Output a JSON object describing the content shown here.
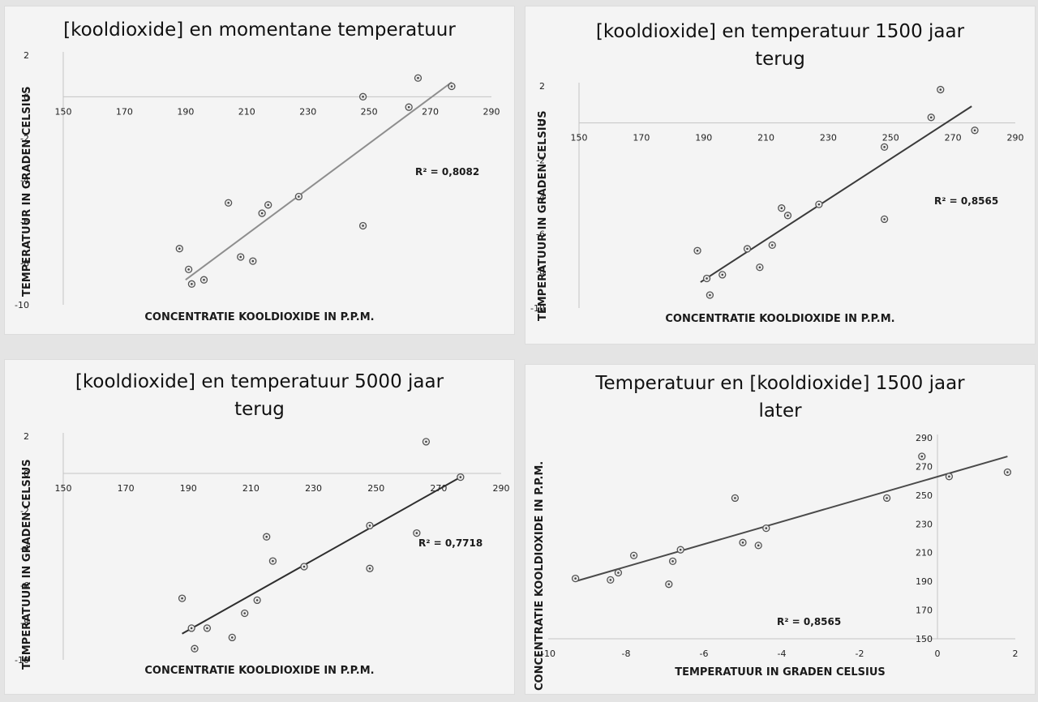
{
  "chart_data": [
    {
      "type": "scatter",
      "title": "[kooldioxide] en momentane temperatuur",
      "xlabel": "CONCENTRATIE KOOLDIOXIDE IN P.P.M.",
      "ylabel": "TEMPERATUUR IN GRADEN CELSIUS",
      "xlim": [
        150,
        290
      ],
      "ylim": [
        -10,
        2
      ],
      "x_ticks": [
        "150",
        "170",
        "190",
        "210",
        "230",
        "250",
        "270",
        "290"
      ],
      "y_ticks": [
        "2",
        "0",
        "-2",
        "-4",
        "-6",
        "-8",
        "-10"
      ],
      "points": [
        {
          "x": 188,
          "y": -7.3
        },
        {
          "x": 191,
          "y": -8.3
        },
        {
          "x": 192,
          "y": -9.0
        },
        {
          "x": 196,
          "y": -8.8
        },
        {
          "x": 204,
          "y": -5.1
        },
        {
          "x": 208,
          "y": -7.7
        },
        {
          "x": 212,
          "y": -7.9
        },
        {
          "x": 215,
          "y": -5.6
        },
        {
          "x": 217,
          "y": -5.2
        },
        {
          "x": 227,
          "y": -4.8
        },
        {
          "x": 248,
          "y": 0.0
        },
        {
          "x": 248,
          "y": -6.2
        },
        {
          "x": 263,
          "y": -0.5
        },
        {
          "x": 266,
          "y": 0.9
        },
        {
          "x": 277,
          "y": 0.5
        }
      ],
      "trendline": {
        "x": [
          190,
          277
        ],
        "y": [
          -8.8,
          0.7
        ]
      },
      "r_squared_label": "R² = 0,8082"
    },
    {
      "type": "scatter",
      "title": "[kooldioxide] en temperatuur 1500 jaar terug",
      "xlabel": "CONCENTRATIE KOOLDIOXIDE IN P.P.M.",
      "ylabel": "TEMPERATUUR IN GRADEN CELSIUS",
      "xlim": [
        150,
        290
      ],
      "ylim": [
        -10,
        2
      ],
      "x_ticks": [
        "150",
        "170",
        "190",
        "210",
        "230",
        "250",
        "270",
        "290"
      ],
      "y_ticks": [
        "2",
        "0",
        "-2",
        "-4",
        "-6",
        "-8",
        "-10"
      ],
      "points": [
        {
          "x": 188,
          "y": -6.9
        },
        {
          "x": 191,
          "y": -8.4
        },
        {
          "x": 192,
          "y": -9.3
        },
        {
          "x": 196,
          "y": -8.2
        },
        {
          "x": 204,
          "y": -6.8
        },
        {
          "x": 208,
          "y": -7.8
        },
        {
          "x": 212,
          "y": -6.6
        },
        {
          "x": 215,
          "y": -4.6
        },
        {
          "x": 217,
          "y": -5.0
        },
        {
          "x": 227,
          "y": -4.4
        },
        {
          "x": 248,
          "y": -1.3
        },
        {
          "x": 248,
          "y": -5.2
        },
        {
          "x": 263,
          "y": 0.3
        },
        {
          "x": 266,
          "y": 1.8
        },
        {
          "x": 277,
          "y": -0.4
        }
      ],
      "trendline": {
        "x": [
          189,
          276
        ],
        "y": [
          -8.6,
          0.9
        ]
      },
      "r_squared_label": "R² = 0,8565"
    },
    {
      "type": "scatter",
      "title": "[kooldioxide] en temperatuur 5000 jaar terug",
      "xlabel": "CONCENTRATIE KOOLDIOXIDE IN P.P.M.",
      "ylabel": "TEMPERATUUR IN GRADEN CELSIUS",
      "xlim": [
        150,
        290
      ],
      "ylim": [
        -10,
        2
      ],
      "x_ticks": [
        "150",
        "170",
        "190",
        "210",
        "230",
        "250",
        "270",
        "290"
      ],
      "y_ticks": [
        "2",
        "0",
        "-2",
        "-4",
        "-6",
        "-8",
        "-10"
      ],
      "points": [
        {
          "x": 188,
          "y": -6.7
        },
        {
          "x": 191,
          "y": -8.3
        },
        {
          "x": 192,
          "y": -9.4
        },
        {
          "x": 196,
          "y": -8.3
        },
        {
          "x": 204,
          "y": -8.8
        },
        {
          "x": 208,
          "y": -7.5
        },
        {
          "x": 212,
          "y": -6.8
        },
        {
          "x": 215,
          "y": -3.4
        },
        {
          "x": 217,
          "y": -4.7
        },
        {
          "x": 227,
          "y": -5.0
        },
        {
          "x": 248,
          "y": -2.8
        },
        {
          "x": 248,
          "y": -5.1
        },
        {
          "x": 263,
          "y": -3.2
        },
        {
          "x": 266,
          "y": 1.7
        },
        {
          "x": 277,
          "y": -0.2
        }
      ],
      "trendline": {
        "x": [
          188,
          277
        ],
        "y": [
          -8.6,
          -0.2
        ]
      },
      "r_squared_label": "R² = 0,7718"
    },
    {
      "type": "scatter",
      "title": "Temperatuur en [kooldioxide] 1500 jaar later",
      "xlabel": "TEMPERATUUR IN GRADEN CELSIUS",
      "ylabel": "CONCENTRATIE KOOLDIOXIDE IN P.P.M.",
      "xlim": [
        -10,
        2
      ],
      "ylim": [
        150,
        290
      ],
      "x_ticks": [
        "-10",
        "-8",
        "-6",
        "-4",
        "-2",
        "0",
        "2"
      ],
      "y_ticks": [
        "290",
        "270",
        "250",
        "230",
        "210",
        "190",
        "170",
        "150"
      ],
      "points": [
        {
          "x": -9.3,
          "y": 192
        },
        {
          "x": -8.4,
          "y": 191
        },
        {
          "x": -8.2,
          "y": 196
        },
        {
          "x": -7.8,
          "y": 208
        },
        {
          "x": -6.9,
          "y": 188
        },
        {
          "x": -6.8,
          "y": 204
        },
        {
          "x": -6.6,
          "y": 212
        },
        {
          "x": -5.2,
          "y": 248
        },
        {
          "x": -5.0,
          "y": 217
        },
        {
          "x": -4.6,
          "y": 215
        },
        {
          "x": -4.4,
          "y": 227
        },
        {
          "x": -1.3,
          "y": 248
        },
        {
          "x": -0.4,
          "y": 277
        },
        {
          "x": 0.3,
          "y": 263
        },
        {
          "x": 1.8,
          "y": 266
        }
      ],
      "trendline": {
        "x": [
          -9.3,
          1.8
        ],
        "y": [
          190,
          277
        ]
      },
      "r_squared_label": "R² = 0,8565"
    }
  ]
}
